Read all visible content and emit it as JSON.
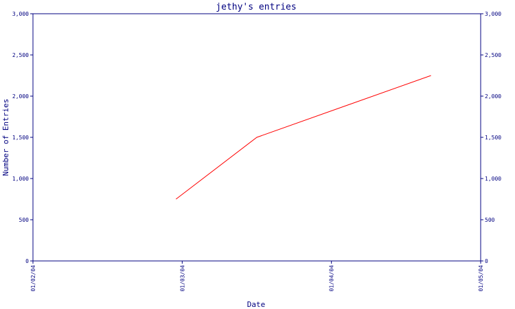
{
  "chart_data": {
    "type": "line",
    "title": "jethy's entries",
    "xlabel": "Date",
    "ylabel": "Number of Entries",
    "x_ticks": [
      "01/02/04",
      "01/03/04",
      "01/04/04",
      "01/05/04"
    ],
    "y_ticks": [
      "0",
      "500",
      "1,000",
      "1,500",
      "2,000",
      "2,500",
      "3,000"
    ],
    "ylim": [
      0,
      3000
    ],
    "xlim": [
      "2004-01-02",
      "2004-01-05"
    ],
    "secondary_y_axis": true,
    "grid": false,
    "series": [
      {
        "color": "#ff0000",
        "points": [
          {
            "x": "2004-01-02 23:00",
            "y": 750
          },
          {
            "x": "2004-01-03 12:00",
            "y": 1500
          },
          {
            "x": "2004-01-04 16:00",
            "y": 2250
          }
        ]
      }
    ],
    "colors": {
      "axis": "#000080",
      "line": "#ff0000"
    }
  }
}
